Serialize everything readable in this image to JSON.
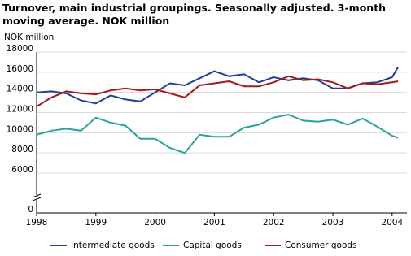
{
  "chart_data": {
    "type": "line",
    "title": "Turnover, main industrial groupings. Seasonally adjusted. 3-month moving average. NOK million",
    "y_label": "NOK million",
    "x": [
      1998.0,
      1998.25,
      1998.5,
      1998.75,
      1999.0,
      1999.25,
      1999.5,
      1999.75,
      2000.0,
      2000.25,
      2000.5,
      2000.75,
      2001.0,
      2001.25,
      2001.5,
      2001.75,
      2002.0,
      2002.25,
      2002.5,
      2002.75,
      2003.0,
      2003.25,
      2003.5,
      2003.75,
      2004.0,
      2004.1
    ],
    "series": [
      {
        "name": "Intermediate goods",
        "color": "#1f3f99",
        "values": [
          14000,
          14100,
          13900,
          13200,
          12900,
          13700,
          13300,
          13100,
          14000,
          14900,
          14700,
          15400,
          16100,
          15600,
          15800,
          15000,
          15500,
          15200,
          15400,
          15200,
          14400,
          14400,
          14900,
          15000,
          15500,
          16500
        ]
      },
      {
        "name": "Capital goods",
        "color": "#2aa59a",
        "values": [
          9800,
          10200,
          10400,
          10200,
          11500,
          11000,
          10700,
          9400,
          9400,
          8500,
          8000,
          9800,
          9600,
          9600,
          10500,
          10800,
          11500,
          11800,
          11200,
          11100,
          11300,
          10800,
          11400,
          10600,
          9700,
          9500
        ]
      },
      {
        "name": "Consumer goods",
        "color": "#a31a1a",
        "values": [
          12600,
          13500,
          14100,
          13900,
          13800,
          14200,
          14400,
          14200,
          14300,
          13900,
          13500,
          14700,
          14900,
          15100,
          14600,
          14600,
          15000,
          15600,
          15200,
          15300,
          15000,
          14400,
          14900,
          14800,
          15000,
          15100
        ]
      }
    ],
    "xlim": [
      1998,
      2004.25
    ],
    "xticks": [
      1998,
      1999,
      2000,
      2001,
      2002,
      2003,
      2004
    ],
    "ylim": [
      0,
      18000
    ],
    "yticks": [
      0,
      6000,
      8000,
      10000,
      12000,
      14000,
      16000,
      18000
    ],
    "y_axis_break": true,
    "grid": true
  }
}
